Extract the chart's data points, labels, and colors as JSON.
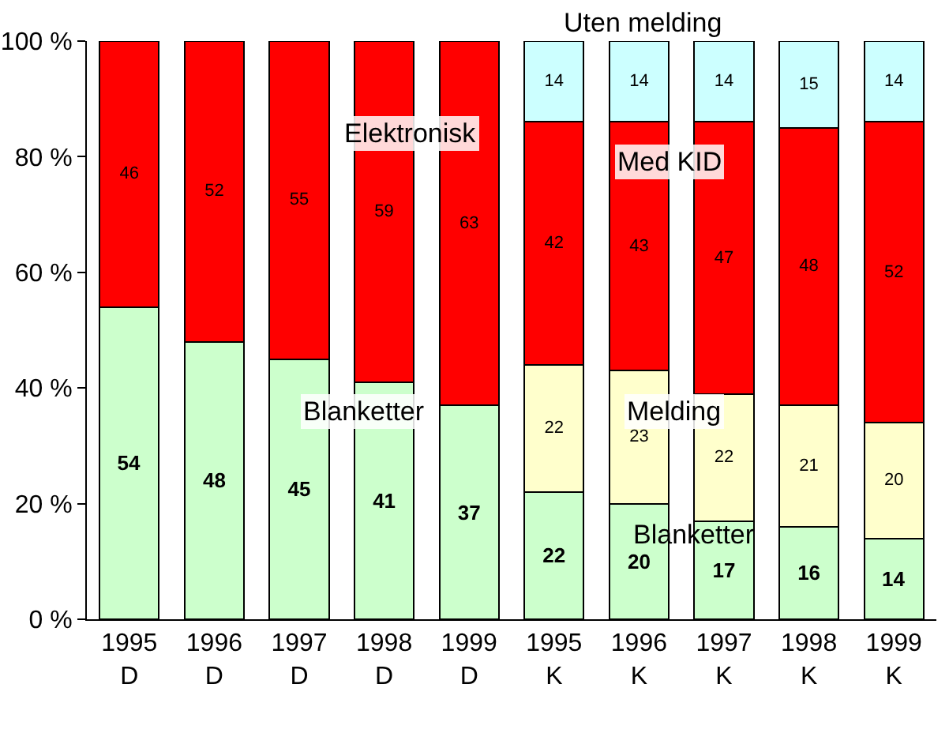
{
  "chart_data": {
    "type": "bar",
    "stacked": true,
    "categories": [
      "1995 D",
      "1996 D",
      "1997 D",
      "1998 D",
      "1999 D",
      "1995 K",
      "1996 K",
      "1997 K",
      "1998 K",
      "1999 K"
    ],
    "series": [
      {
        "color": "#ccffcc",
        "values": [
          54,
          48,
          45,
          41,
          37,
          22,
          20,
          17,
          16,
          14
        ]
      },
      {
        "color": "#ffffcc",
        "values": [
          null,
          null,
          null,
          null,
          null,
          22,
          23,
          22,
          21,
          20
        ]
      },
      {
        "color": "#ff0000",
        "values": [
          46,
          52,
          55,
          59,
          63,
          null,
          null,
          null,
          null,
          null
        ]
      },
      {
        "color": "#ff0000",
        "values": [
          null,
          null,
          null,
          null,
          null,
          42,
          43,
          47,
          48,
          52
        ]
      },
      {
        "color": "#ccffff",
        "values": [
          null,
          null,
          null,
          null,
          null,
          14,
          14,
          14,
          15,
          14
        ]
      }
    ],
    "ylim": [
      0,
      100
    ],
    "yticks": [
      {
        "value": 0,
        "label": "0 %"
      },
      {
        "value": 20,
        "label": "20 %"
      },
      {
        "value": 40,
        "label": "40 %"
      },
      {
        "value": 60,
        "label": "60 %"
      },
      {
        "value": 80,
        "label": "80 %"
      },
      {
        "value": 100,
        "label": "100 %"
      }
    ],
    "grid": false,
    "data_labels": true,
    "annotations": [
      "Elektronisk",
      "Blanketter",
      "Uten melding",
      "Med KID",
      "Melding",
      "Blanketter"
    ]
  }
}
